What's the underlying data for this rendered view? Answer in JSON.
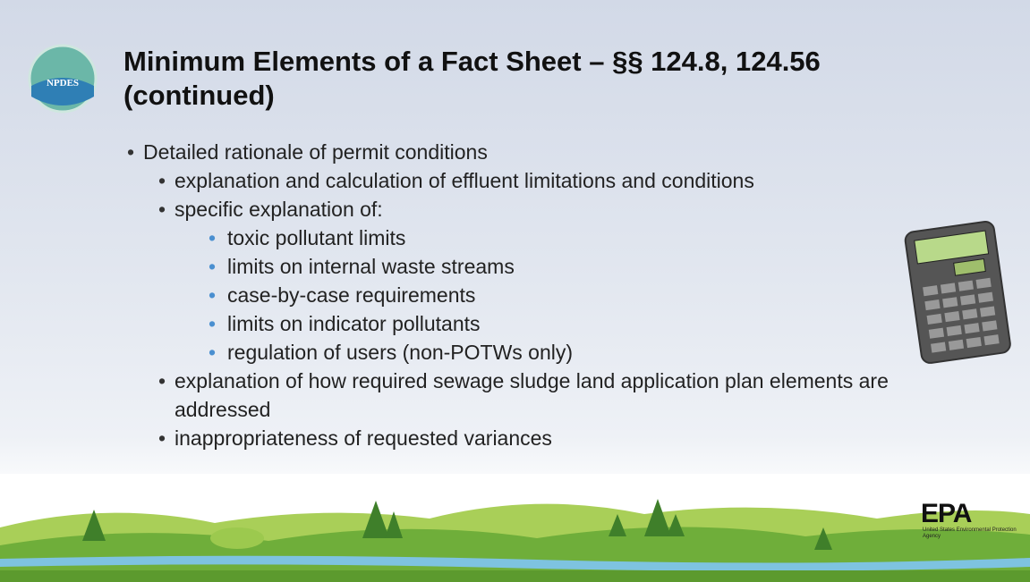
{
  "slide": {
    "logo": "NPDES",
    "title": "Minimum Elements of a Fact Sheet – §§ 124.8, 124.56 (continued)",
    "bullets": [
      {
        "text": "Detailed rationale of permit conditions",
        "children": [
          {
            "text": "explanation and calculation of effluent limitations and conditions"
          },
          {
            "text": "specific explanation of:",
            "children": [
              {
                "text": "toxic pollutant limits"
              },
              {
                "text": "limits on internal waste streams"
              },
              {
                "text": "case-by-case requirements"
              },
              {
                "text": "limits on indicator pollutants"
              },
              {
                "text": "regulation of users (non-POTWs only)"
              }
            ]
          },
          {
            "text": "explanation of how required sewage sludge land application plan elements are addressed"
          },
          {
            "text": "inappropriateness of requested variances"
          }
        ]
      }
    ]
  },
  "footer": {
    "epa": "EPA",
    "agency": "United States Environmental Protection Agency"
  }
}
